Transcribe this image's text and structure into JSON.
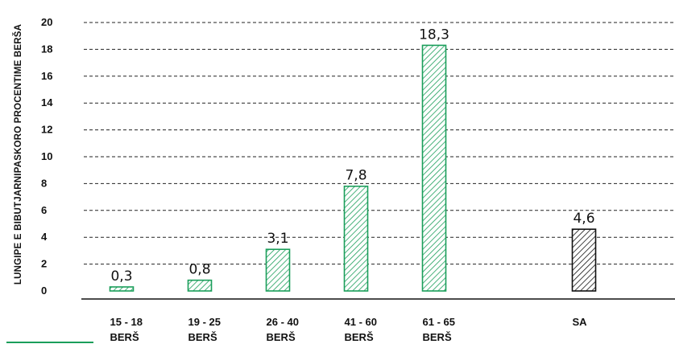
{
  "chart_data": {
    "type": "bar",
    "ylabel": "LUNGIPE E BIBUTJARNIPASKORO PROCENTIME BERŠA",
    "ylim": [
      0,
      20
    ],
    "yticks": [
      0,
      2,
      4,
      6,
      8,
      10,
      12,
      14,
      16,
      18,
      20
    ],
    "grid": true,
    "categories": [
      [
        "15 - 18",
        "BERŠ"
      ],
      [
        "19 - 25",
        "BERŠ"
      ],
      [
        "26 - 40",
        "BERŠ"
      ],
      [
        "41 - 60",
        "BERŠ"
      ],
      [
        "61 - 65",
        "BERŠ"
      ],
      [
        "SA"
      ]
    ],
    "values": [
      0.3,
      0.8,
      3.1,
      7.8,
      18.3,
      4.6
    ],
    "data_labels": [
      "0,3",
      "0,8",
      "3,1",
      "7,8",
      "18,3",
      "4,6"
    ],
    "colors": [
      "#1a9e5a",
      "#1a9e5a",
      "#1a9e5a",
      "#1a9e5a",
      "#1a9e5a",
      "#111111"
    ],
    "accent_color": "#1a9e5a"
  }
}
